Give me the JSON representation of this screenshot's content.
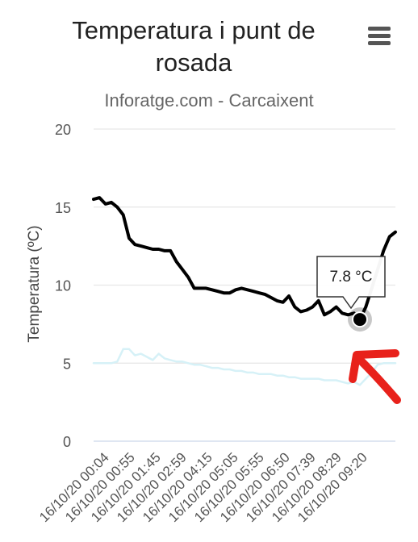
{
  "chart_data": {
    "type": "line",
    "title": "Temperatura i punt de rosada",
    "subtitle": "Inforatge.com - Carcaixent",
    "ylabel": "Temperatura (ºC)",
    "xlabel": "",
    "ylim": [
      0,
      20
    ],
    "yticks": [
      "0",
      "5",
      "10",
      "15",
      "20"
    ],
    "grid": true,
    "xticks": [
      "16/10/20 00:04",
      "16/10/20 00:55",
      "16/10/20 01:45",
      "16/10/20 02:59",
      "16/10/20 04:15",
      "16/10/20 05:05",
      "16/10/20 05:55",
      "16/10/20 06:50",
      "16/10/20 07:39",
      "16/10/20 08:29",
      "16/10/20 09:20"
    ],
    "series": [
      {
        "name": "",
        "color": "#000000",
        "values": [
          15.5,
          15.6,
          15.2,
          15.3,
          15.0,
          14.5,
          13.0,
          12.6,
          12.5,
          12.4,
          12.3,
          12.3,
          12.2,
          12.2,
          11.5,
          11.0,
          10.5,
          9.8,
          9.8,
          9.8,
          9.7,
          9.6,
          9.5,
          9.5,
          9.7,
          9.8,
          9.7,
          9.6,
          9.5,
          9.4,
          9.2,
          9.0,
          8.9,
          9.3,
          8.6,
          8.3,
          8.4,
          8.6,
          9.0,
          8.1,
          8.3,
          8.6,
          8.2,
          8.1,
          8.2,
          7.8,
          8.6,
          9.8,
          11.0,
          12.2,
          13.1,
          13.4
        ]
      },
      {
        "name": "",
        "color": "#d6f1f7",
        "values": [
          5.0,
          5.0,
          5.0,
          5.0,
          5.1,
          5.9,
          5.9,
          5.5,
          5.6,
          5.4,
          5.2,
          5.6,
          5.3,
          5.2,
          5.1,
          5.1,
          5.0,
          4.9,
          4.9,
          4.8,
          4.7,
          4.7,
          4.6,
          4.6,
          4.5,
          4.5,
          4.4,
          4.4,
          4.3,
          4.3,
          4.3,
          4.2,
          4.2,
          4.1,
          4.1,
          4.0,
          4.0,
          4.0,
          4.0,
          3.9,
          3.9,
          3.9,
          3.8,
          3.7,
          3.8,
          3.6,
          4.0,
          4.4,
          4.9,
          5.0,
          5.0,
          5.0
        ]
      }
    ],
    "tooltip": {
      "text": "7.8 °C",
      "value": 7.8,
      "point_index": 45
    },
    "annotation_color": "#e8211b"
  },
  "header": {
    "menu_icon": "hamburger-menu-icon"
  }
}
